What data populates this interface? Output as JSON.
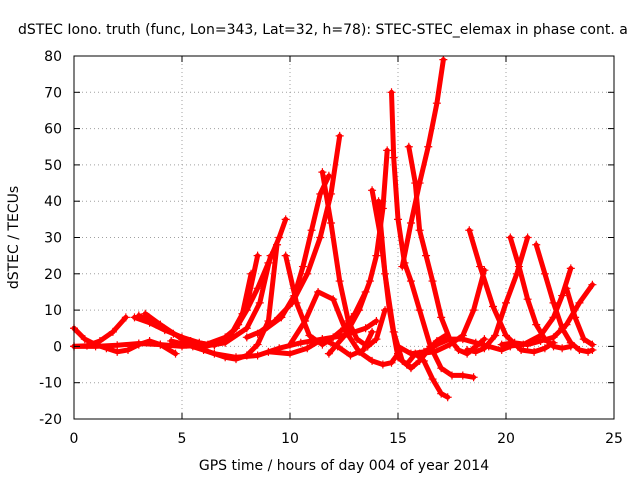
{
  "chart_data": {
    "type": "scatter",
    "title": "dSTEC Iono. truth (func, Lon=343, Lat=32, h=78): STEC-STEC_elemax in phase cont. a",
    "xlabel": "GPS time / hours of day 004 of year 2014",
    "ylabel": "dSTEC  / TECUs",
    "xlim": [
      0,
      25
    ],
    "ylim": [
      -20,
      80
    ],
    "xticks": [
      0,
      5,
      10,
      15,
      20,
      25
    ],
    "yticks": [
      -20,
      -10,
      0,
      10,
      20,
      30,
      40,
      50,
      60,
      70,
      80
    ],
    "grid": true,
    "marker": "+",
    "color": "#ff0000",
    "series": [
      {
        "x": [
          0.0,
          0.5,
          1.0,
          1.5,
          2.0,
          2.5,
          3.0,
          3.5,
          4.0,
          4.7
        ],
        "y": [
          5.0,
          2.0,
          0.5,
          -0.5,
          -1.5,
          -1.0,
          0.5,
          1.5,
          0.5,
          -2.0
        ]
      },
      {
        "x": [
          0.0,
          0.6,
          1.2,
          1.8,
          2.4
        ],
        "y": [
          0.0,
          0.2,
          1.5,
          4.0,
          8.0
        ]
      },
      {
        "x": [
          0.0,
          1.0,
          2.0,
          3.0,
          4.0,
          5.0,
          6.0,
          7.0,
          7.5,
          8.0,
          8.5,
          9.0,
          9.5,
          9.8
        ],
        "y": [
          0.0,
          0.0,
          0.3,
          0.8,
          0.5,
          0.0,
          0.3,
          2.5,
          5.0,
          10.0,
          16.0,
          23.0,
          30.0,
          35.0
        ]
      },
      {
        "x": [
          2.8,
          3.5,
          4.2,
          5.0,
          5.8,
          6.5,
          7.2,
          7.8,
          8.2
        ],
        "y": [
          8.0,
          6.5,
          4.5,
          2.5,
          1.0,
          0.3,
          2.5,
          9.0,
          20.0
        ]
      },
      {
        "x": [
          3.0,
          3.8,
          4.6,
          5.4,
          6.2,
          7.0,
          7.6,
          8.1,
          8.5
        ],
        "y": [
          8.5,
          6.0,
          3.5,
          1.5,
          0.5,
          1.5,
          6.0,
          14.0,
          25.0
        ]
      },
      {
        "x": [
          3.3,
          4.0,
          5.0,
          6.0,
          7.0,
          8.0,
          8.6,
          9.1
        ],
        "y": [
          9.0,
          6.0,
          2.0,
          0.0,
          1.0,
          5.0,
          12.0,
          25.0
        ]
      },
      {
        "x": [
          5.2,
          6.0,
          7.0,
          7.5,
          8.0,
          8.5,
          9.0,
          9.4
        ],
        "y": [
          0.5,
          -1.0,
          -3.0,
          -3.5,
          -2.5,
          0.5,
          7.0,
          28.0
        ]
      },
      {
        "x": [
          4.5,
          5.5,
          6.5,
          7.5,
          8.5,
          9.5,
          10.5,
          11.5,
          12.5,
          13.5,
          14.0
        ],
        "y": [
          1.5,
          0.0,
          -2.0,
          -3.0,
          -2.5,
          -0.5,
          1.0,
          2.0,
          3.0,
          5.0,
          7.0
        ]
      },
      {
        "x": [
          8.0,
          8.8,
          9.6,
          10.2,
          10.6,
          11.0,
          11.4,
          11.8
        ],
        "y": [
          2.5,
          4.5,
          8.0,
          14.0,
          22.0,
          32.0,
          42.0,
          47.0
        ]
      },
      {
        "x": [
          8.5,
          9.3,
          10.1,
          10.8,
          11.4,
          11.9,
          12.3
        ],
        "y": [
          3.5,
          7.0,
          12.0,
          20.0,
          30.0,
          42.0,
          58.0
        ]
      },
      {
        "x": [
          9.8,
          10.3,
          10.9,
          11.5,
          12.0,
          12.5,
          13.0,
          13.5
        ],
        "y": [
          25.0,
          12.0,
          3.0,
          0.5,
          2.5,
          5.0,
          9.0,
          15.0
        ]
      },
      {
        "x": [
          11.5,
          11.9,
          12.3,
          12.7,
          13.1,
          13.6,
          14.0,
          14.4
        ],
        "y": [
          48.0,
          34.0,
          18.0,
          7.0,
          2.0,
          0.0,
          2.0,
          10.0
        ]
      },
      {
        "x": [
          10.0,
          10.7,
          11.3,
          12.0,
          12.6,
          13.2,
          13.8,
          14.3,
          14.7,
          15.0
        ],
        "y": [
          0.5,
          7.0,
          15.0,
          13.0,
          4.0,
          -1.5,
          -4.0,
          -5.0,
          -4.5,
          -2.0
        ]
      },
      {
        "x": [
          9.0,
          10.0,
          10.8,
          11.5,
          12.2,
          12.8,
          13.4,
          13.8
        ],
        "y": [
          -1.5,
          -2.0,
          -0.5,
          2.0,
          0.0,
          -2.5,
          -1.0,
          4.0
        ]
      },
      {
        "x": [
          11.8,
          12.6,
          13.2,
          13.7,
          14.0,
          14.3,
          14.5
        ],
        "y": [
          -2.0,
          3.5,
          10.0,
          18.0,
          25.0,
          38.0,
          54.0
        ]
      },
      {
        "x": [
          13.8,
          14.2,
          14.6,
          15.0,
          15.4,
          15.8,
          16.2,
          16.6,
          17.0,
          17.3
        ],
        "y": [
          43.0,
          30.0,
          10.0,
          -3.0,
          -5.0,
          -2.0,
          -4.0,
          -9.0,
          -13.0,
          -14.0
        ]
      },
      {
        "x": [
          14.1,
          14.4,
          14.8,
          15.2,
          15.6,
          16.0,
          16.4,
          16.8,
          17.2
        ],
        "y": [
          40.0,
          20.0,
          4.0,
          -4.0,
          -6.0,
          -4.0,
          -1.0,
          1.5,
          3.0
        ]
      },
      {
        "x": [
          14.7,
          14.8,
          15.0,
          15.3,
          15.6,
          16.0,
          16.5,
          17.0,
          17.5,
          18.0,
          18.5
        ],
        "y": [
          70.0,
          52.0,
          35.0,
          23.0,
          18.0,
          10.0,
          0.0,
          -6.0,
          -8.0,
          -8.0,
          -8.5
        ]
      },
      {
        "x": [
          15.5,
          15.8,
          16.0,
          16.3,
          16.6,
          17.0,
          17.4,
          17.8,
          18.2,
          18.6,
          19.0
        ],
        "y": [
          55.0,
          45.0,
          32.0,
          25.0,
          18.0,
          8.0,
          2.0,
          -1.0,
          -2.0,
          0.0,
          2.0
        ]
      },
      {
        "x": [
          15.2,
          15.6,
          16.0,
          16.4,
          16.8,
          17.1
        ],
        "y": [
          22.0,
          34.0,
          45.0,
          55.0,
          67.0,
          79.0
        ]
      },
      {
        "x": [
          15.0,
          15.6,
          16.2,
          16.8,
          17.4,
          18.0,
          18.6,
          19.2,
          19.8,
          20.2
        ],
        "y": [
          0.0,
          -2.0,
          -1.5,
          0.5,
          2.0,
          2.0,
          1.0,
          0.0,
          -1.0,
          0.0
        ]
      },
      {
        "x": [
          16.0,
          16.7,
          17.4,
          18.0,
          18.5,
          19.0
        ],
        "y": [
          -2.0,
          -1.5,
          0.5,
          3.0,
          10.0,
          21.0
        ]
      },
      {
        "x": [
          18.2,
          18.6,
          19.0,
          19.5,
          20.0,
          20.5,
          21.0
        ],
        "y": [
          -1.0,
          -1.5,
          -0.5,
          3.0,
          12.0,
          20.0,
          30.0
        ]
      },
      {
        "x": [
          18.3,
          18.8,
          19.4,
          20.0,
          20.7,
          21.3,
          21.8,
          22.2
        ],
        "y": [
          32.0,
          22.0,
          11.0,
          3.0,
          -1.0,
          -1.5,
          -0.5,
          1.0
        ]
      },
      {
        "x": [
          20.2,
          20.6,
          21.0,
          21.4,
          21.8,
          22.2,
          22.6,
          23.0
        ],
        "y": [
          30.0,
          22.0,
          13.0,
          6.0,
          2.0,
          0.0,
          -0.5,
          0.0
        ]
      },
      {
        "x": [
          19.8,
          20.4,
          21.0,
          21.6,
          22.2,
          22.8,
          23.4,
          24.0
        ],
        "y": [
          0.5,
          1.0,
          0.5,
          1.5,
          2.5,
          6.0,
          12.0,
          17.0
        ]
      },
      {
        "x": [
          21.4,
          21.8,
          22.2,
          22.6,
          23.0,
          23.4,
          23.8,
          24.0
        ],
        "y": [
          28.0,
          20.0,
          12.0,
          5.0,
          1.0,
          -1.0,
          -1.5,
          -1.0
        ]
      },
      {
        "x": [
          20.0,
          20.8,
          21.6,
          22.2,
          22.6,
          23.0
        ],
        "y": [
          0.0,
          0.5,
          3.0,
          8.0,
          14.0,
          21.5
        ]
      },
      {
        "x": [
          22.8,
          23.2,
          23.6,
          24.0
        ],
        "y": [
          16.0,
          8.0,
          2.0,
          0.5
        ]
      }
    ]
  }
}
